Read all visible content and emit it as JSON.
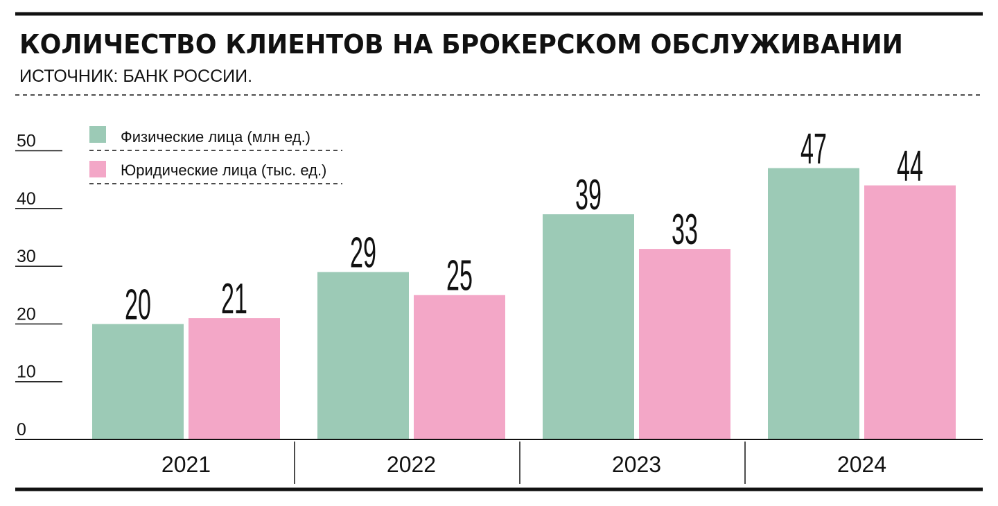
{
  "title": "КОЛИЧЕСТВО КЛИЕНТОВ НА БРОКЕРСКОМ ОБСЛУЖИВАНИИ",
  "subtitle": "ИСТОЧНИК: БАНК РОССИИ.",
  "chart_data": {
    "type": "bar",
    "categories": [
      "2021",
      "2022",
      "2023",
      "2024"
    ],
    "series": [
      {
        "name": "Физические лица (млн ед.)",
        "values": [
          20,
          29,
          39,
          47
        ],
        "color": "#9ccab6"
      },
      {
        "name": "Юридические лица (тыс. ед.)",
        "values": [
          21,
          25,
          33,
          44
        ],
        "color": "#f3a7c7"
      }
    ],
    "yticks": [
      0,
      10,
      20,
      30,
      40,
      50
    ],
    "ylim": [
      0,
      52
    ],
    "legend_position": "top-left",
    "data_labels": true,
    "grid": false
  }
}
